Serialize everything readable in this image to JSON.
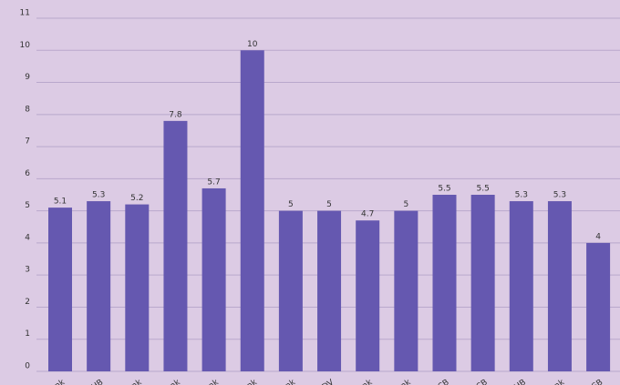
{
  "chart_data": {
    "type": "bar",
    "categories": [
      "nk",
      "HB",
      "nk",
      "nk",
      "nk",
      "nk",
      "nk",
      "DV",
      "nk",
      "nk",
      "CB",
      "CB",
      "HB",
      "nk",
      "SB"
    ],
    "values": [
      5.1,
      5.3,
      5.2,
      7.8,
      5.7,
      10,
      5,
      5,
      4.7,
      5,
      5.5,
      5.5,
      5.3,
      5.3,
      4
    ],
    "color": "#6558b0",
    "ylim": [
      0,
      11
    ],
    "yticks": [
      0,
      1,
      2,
      3,
      4,
      5,
      6,
      7,
      8,
      9,
      10,
      11
    ],
    "grid": true
  }
}
